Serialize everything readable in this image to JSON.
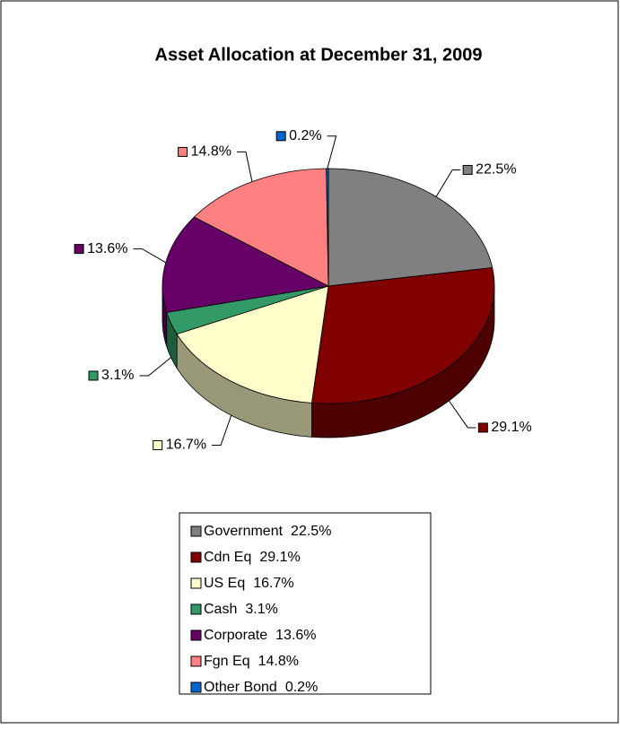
{
  "chart_data": {
    "type": "pie",
    "title": "Asset Allocation at December 31, 2009",
    "categories": [
      "Government",
      "Cdn Eq",
      "US Eq",
      "Cash",
      "Corporate",
      "Fgn Eq",
      "Other Bond"
    ],
    "values": [
      22.5,
      29.1,
      16.7,
      3.1,
      13.6,
      14.8,
      0.2
    ],
    "value_labels": [
      "22.5%",
      "29.1%",
      "16.7%",
      "3.1%",
      "13.6%",
      "14.8%",
      "0.2%"
    ],
    "colors": [
      "#808080",
      "#800000",
      "#FFFFCC",
      "#339966",
      "#660066",
      "#FF8080",
      "#0066CC"
    ],
    "legend": "bottom"
  }
}
